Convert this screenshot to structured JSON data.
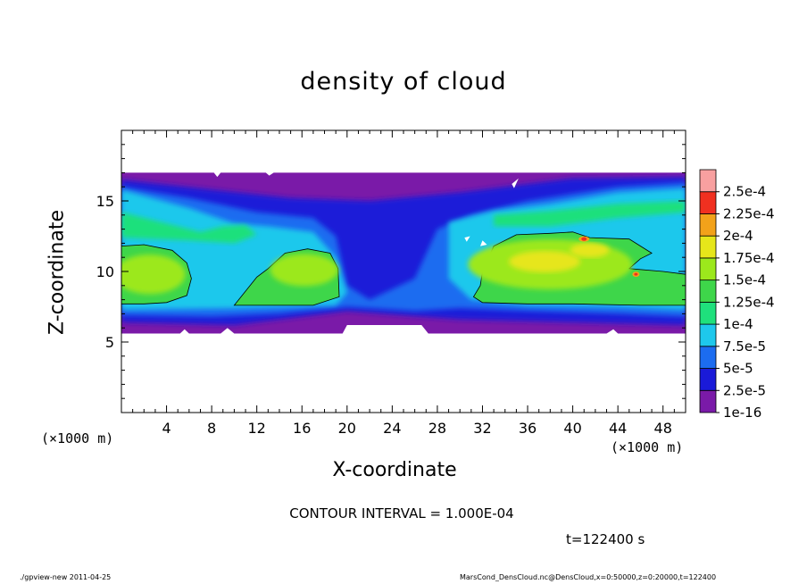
{
  "chart_data": {
    "type": "heatmap",
    "title": "density of cloud",
    "xlabel": "X-coordinate",
    "ylabel": "Z-coordinate",
    "x_unit": "(×1000 m)",
    "xlim": [
      0,
      50
    ],
    "ylim": [
      0,
      20
    ],
    "x_ticks": [
      4,
      8,
      12,
      16,
      20,
      24,
      28,
      32,
      36,
      40,
      44,
      48
    ],
    "y_ticks": [
      5,
      10,
      15
    ],
    "colorbar": {
      "levels": [
        "1e-16",
        "2.5e-5",
        "5e-5",
        "7.5e-5",
        "1e-4",
        "1.25e-4",
        "1.5e-4",
        "1.75e-4",
        "2e-4",
        "2.25e-4",
        "2.5e-4"
      ],
      "colors": [
        "#7a1aa8",
        "#1a1ad8",
        "#1c6cf0",
        "#1ec8ec",
        "#1fe07c",
        "#3ed64a",
        "#9ce81c",
        "#e6e61a",
        "#f2a21a",
        "#f03020",
        "#f8a0a0"
      ]
    },
    "regions": [
      {
        "name": "cloud deck",
        "x": [
          0,
          50
        ],
        "z": [
          5.6,
          17
        ]
      },
      {
        "name": "left cloud core",
        "x": [
          0,
          6
        ],
        "z": [
          7.5,
          12
        ],
        "value": 0.00012
      },
      {
        "name": "central cloud core",
        "x": [
          10,
          19
        ],
        "z": [
          7.5,
          11.5
        ],
        "value": 0.00013
      },
      {
        "name": "right cloud core",
        "x": [
          31,
          50
        ],
        "z": [
          7.5,
          13
        ],
        "value": 0.000145
      },
      {
        "name": "local maximum",
        "x": 41,
        "z": 12.3,
        "value": 0.000225
      },
      {
        "name": "local maximum",
        "x": 45.6,
        "z": 9.8,
        "value": 0.0002
      }
    ],
    "contour_interval": "1.000E-04",
    "grid": false,
    "legend": "right"
  },
  "text": {
    "x_unit_left": "(×1000 m)",
    "x_unit_right": "(×1000 m)",
    "contour_note": "CONTOUR INTERVAL = 1.000E-04",
    "time_note": "t=122400 s",
    "footer_left": "./gpview-new  2011-04-25",
    "footer_right": "MarsCond_DensCloud.nc@DensCloud,x=0:50000,z=0:20000,t=122400"
  }
}
